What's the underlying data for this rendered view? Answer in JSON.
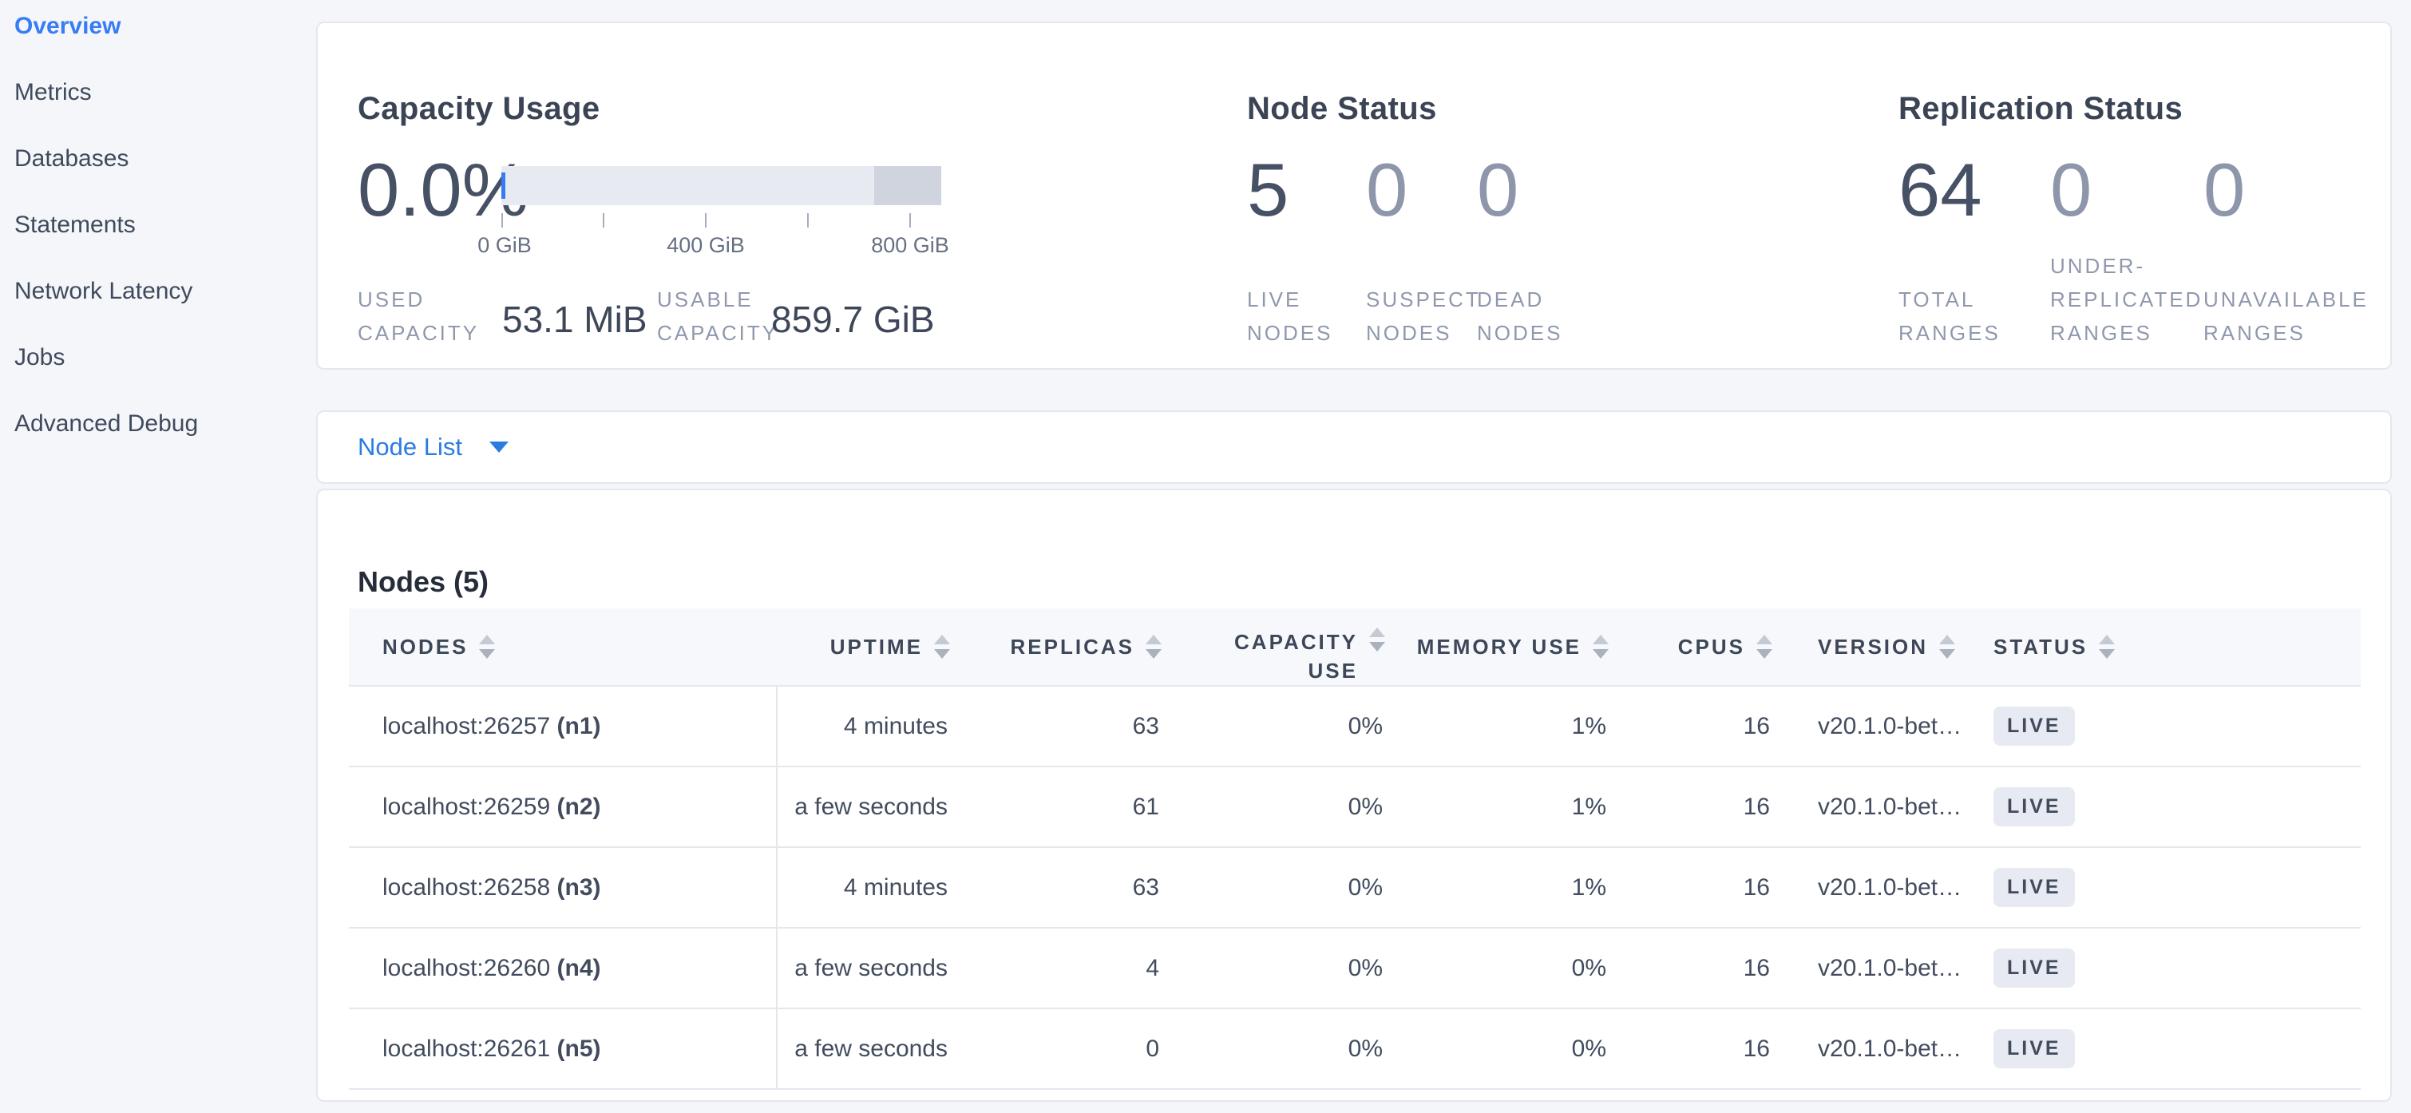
{
  "sidebar": {
    "items": [
      {
        "label": "Overview",
        "active": true
      },
      {
        "label": "Metrics"
      },
      {
        "label": "Databases"
      },
      {
        "label": "Statements"
      },
      {
        "label": "Network Latency"
      },
      {
        "label": "Jobs"
      },
      {
        "label": "Advanced Debug"
      }
    ]
  },
  "capacity": {
    "title": "Capacity Usage",
    "percent": "0.0%",
    "axis_ticks": [
      "0 GiB",
      "400 GiB",
      "800 GiB"
    ],
    "used_label": "USED CAPACITY",
    "used_value": "53.1 MiB",
    "usable_label": "USABLE CAPACITY",
    "usable_value": "859.7 GiB",
    "bar": {
      "dark_pct": 15.3,
      "marker_pct": 0
    }
  },
  "node_status": {
    "title": "Node Status",
    "stats": [
      {
        "value": "5",
        "label": "LIVE NODES"
      },
      {
        "value": "0",
        "label": "SUSPECT NODES"
      },
      {
        "value": "0",
        "label": "DEAD NODES"
      }
    ]
  },
  "replication": {
    "title": "Replication Status",
    "stats": [
      {
        "value": "64",
        "label": "TOTAL RANGES"
      },
      {
        "value": "0",
        "label": "UNDER-REPLICATED RANGES"
      },
      {
        "value": "0",
        "label": "UNAVAILABLE RANGES"
      }
    ]
  },
  "node_list": {
    "label": "Node List"
  },
  "nodes_table": {
    "title": "Nodes (5)",
    "columns": [
      "NODES",
      "UPTIME",
      "REPLICAS",
      "CAPACITY USE",
      "MEMORY USE",
      "CPUS",
      "VERSION",
      "STATUS"
    ],
    "rows": [
      {
        "node": "localhost:26257",
        "id": "(n1)",
        "uptime": "4 minutes",
        "replicas": "63",
        "capacity_use": "0%",
        "memory_use": "1%",
        "cpus": "16",
        "version": "v20.1.0-bet…",
        "status": "LIVE"
      },
      {
        "node": "localhost:26259",
        "id": "(n2)",
        "uptime": "a few seconds",
        "replicas": "61",
        "capacity_use": "0%",
        "memory_use": "1%",
        "cpus": "16",
        "version": "v20.1.0-bet…",
        "status": "LIVE"
      },
      {
        "node": "localhost:26258",
        "id": "(n3)",
        "uptime": "4 minutes",
        "replicas": "63",
        "capacity_use": "0%",
        "memory_use": "1%",
        "cpus": "16",
        "version": "v20.1.0-bet…",
        "status": "LIVE"
      },
      {
        "node": "localhost:26260",
        "id": "(n4)",
        "uptime": "a few seconds",
        "replicas": "4",
        "capacity_use": "0%",
        "memory_use": "0%",
        "cpus": "16",
        "version": "v20.1.0-bet…",
        "status": "LIVE"
      },
      {
        "node": "localhost:26261",
        "id": "(n5)",
        "uptime": "a few seconds",
        "replicas": "0",
        "capacity_use": "0%",
        "memory_use": "0%",
        "cpus": "16",
        "version": "v20.1.0-bet…",
        "status": "LIVE"
      }
    ]
  },
  "colors": {
    "accent_blue": "#377cf6",
    "page_bg": "#f5f6fa",
    "card_border": "#e4e7ed",
    "text_dark": "#3b4455",
    "text_muted": "#8f98ac",
    "big_number": "#475165",
    "big_number_dim": "#8d96ab",
    "bar_light": "#e7eaf0",
    "bar_dark": "#cfd4de",
    "header_bg": "#f7f8fb",
    "badge_bg": "#e7eaf2",
    "badge_text": "#414b5c"
  }
}
